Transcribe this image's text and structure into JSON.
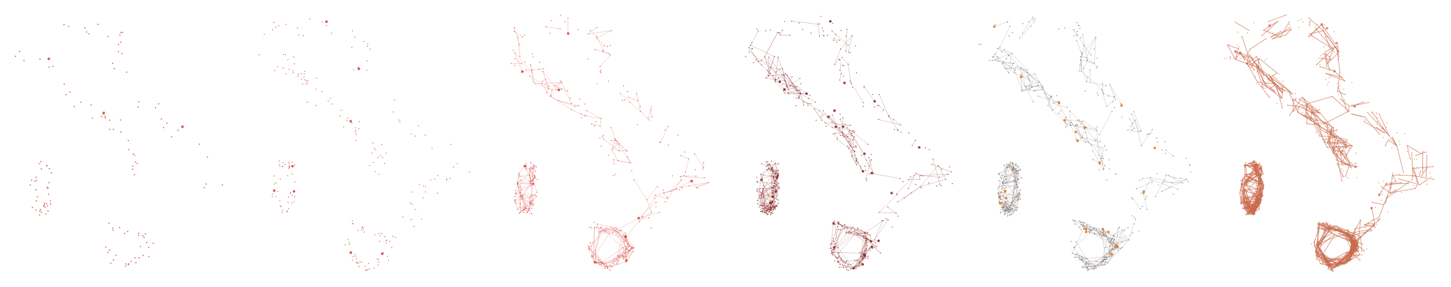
{
  "figure": {
    "panel_count": 6,
    "region_shapes": [
      "italian-peninsula",
      "sicily",
      "sardinia"
    ],
    "panels": [
      {
        "id": "panel-1",
        "style": "sparse-points",
        "color": "#d0453a",
        "edges": false,
        "density": 0.08
      },
      {
        "id": "panel-2",
        "style": "points",
        "color": "#d0453a",
        "edges": false,
        "density": 0.18
      },
      {
        "id": "panel-3",
        "style": "network",
        "color": "#d7443d",
        "edges": true,
        "density": 0.35
      },
      {
        "id": "panel-4",
        "style": "network",
        "color": "#8a2b28",
        "edges": true,
        "density": 0.6
      },
      {
        "id": "panel-5",
        "style": "network-highlight",
        "color": "#7a6f6a",
        "accent": "#e07a1f",
        "edges": true,
        "density": 0.6
      },
      {
        "id": "panel-6",
        "style": "dense-network",
        "color": "#c96a4c",
        "edges": true,
        "density": 1.0
      }
    ]
  }
}
